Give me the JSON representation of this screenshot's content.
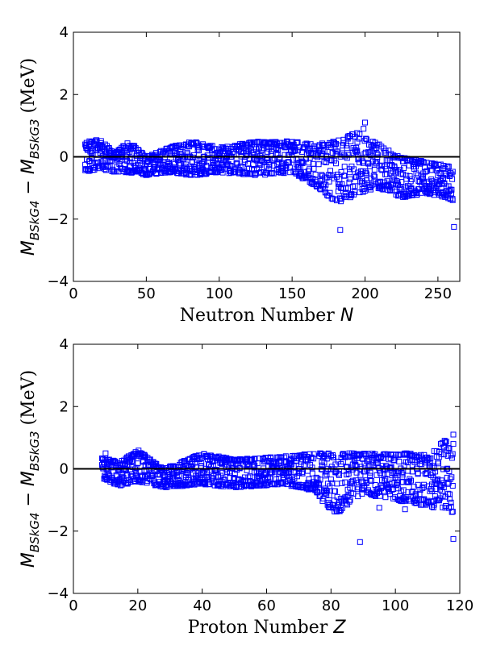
{
  "chart_data": [
    {
      "type": "scatter",
      "marker": "open-square",
      "color": "#0000ff",
      "xlabel": "Neutron Number",
      "xlabel_symbol": "N",
      "ylabel": {
        "prefix": "M",
        "sub1": "BSkG4",
        "minus": "−",
        "prefix2": "M",
        "sub2": "BSkG3",
        "unit": " (MeV)"
      },
      "xlim": [
        0,
        265
      ],
      "ylim": [
        -4,
        4
      ],
      "xticks": [
        0,
        50,
        100,
        150,
        200,
        250
      ],
      "yticks": [
        -4,
        -2,
        0,
        2,
        4
      ],
      "reference_line": 0,
      "envelope": [
        {
          "x": 8,
          "lo": -0.5,
          "hi": 0.4
        },
        {
          "x": 18,
          "lo": -0.4,
          "hi": 0.6
        },
        {
          "x": 28,
          "lo": -0.5,
          "hi": 0.1
        },
        {
          "x": 38,
          "lo": -0.5,
          "hi": 0.5
        },
        {
          "x": 50,
          "lo": -0.6,
          "hi": 0.0
        },
        {
          "x": 65,
          "lo": -0.5,
          "hi": 0.3
        },
        {
          "x": 82,
          "lo": -0.6,
          "hi": 0.5
        },
        {
          "x": 100,
          "lo": -0.5,
          "hi": 0.3
        },
        {
          "x": 126,
          "lo": -0.6,
          "hi": 0.5
        },
        {
          "x": 150,
          "lo": -0.5,
          "hi": 0.5
        },
        {
          "x": 165,
          "lo": -0.9,
          "hi": 0.4
        },
        {
          "x": 180,
          "lo": -1.5,
          "hi": 0.5
        },
        {
          "x": 195,
          "lo": -1.2,
          "hi": 0.8
        },
        {
          "x": 210,
          "lo": -1.0,
          "hi": 0.4
        },
        {
          "x": 225,
          "lo": -1.3,
          "hi": 0.0
        },
        {
          "x": 245,
          "lo": -1.2,
          "hi": -0.2
        },
        {
          "x": 260,
          "lo": -1.4,
          "hi": -0.3
        }
      ],
      "outliers": [
        {
          "x": 9,
          "y": 0.45
        },
        {
          "x": 11,
          "y": 0.5
        },
        {
          "x": 183,
          "y": -2.35
        },
        {
          "x": 200,
          "y": 1.1
        },
        {
          "x": 199,
          "y": 0.9
        },
        {
          "x": 261,
          "y": -2.25
        },
        {
          "x": 260,
          "y": -1.35
        },
        {
          "x": 190,
          "y": -1.3
        }
      ]
    },
    {
      "type": "scatter",
      "marker": "open-square",
      "color": "#0000ff",
      "xlabel": "Proton Number",
      "xlabel_symbol": "Z",
      "ylabel": {
        "prefix": "M",
        "sub1": "BSkG4",
        "minus": "−",
        "prefix2": "M",
        "sub2": "BSkG3",
        "unit": " (MeV)"
      },
      "xlim": [
        0,
        120
      ],
      "ylim": [
        -4,
        4
      ],
      "xticks": [
        0,
        20,
        40,
        60,
        80,
        100,
        120
      ],
      "yticks": [
        -4,
        -2,
        0,
        2,
        4
      ],
      "reference_line": 0,
      "envelope": [
        {
          "x": 9,
          "lo": -0.3,
          "hi": 0.4
        },
        {
          "x": 14,
          "lo": -0.55,
          "hi": 0.2
        },
        {
          "x": 20,
          "lo": -0.4,
          "hi": 0.6
        },
        {
          "x": 28,
          "lo": -0.6,
          "hi": 0.0
        },
        {
          "x": 40,
          "lo": -0.5,
          "hi": 0.5
        },
        {
          "x": 50,
          "lo": -0.6,
          "hi": 0.3
        },
        {
          "x": 65,
          "lo": -0.5,
          "hi": 0.4
        },
        {
          "x": 75,
          "lo": -0.7,
          "hi": 0.5
        },
        {
          "x": 81,
          "lo": -1.5,
          "hi": 0.5
        },
        {
          "x": 90,
          "lo": -0.8,
          "hi": 0.5
        },
        {
          "x": 100,
          "lo": -1.0,
          "hi": 0.5
        },
        {
          "x": 110,
          "lo": -1.2,
          "hi": 0.5
        },
        {
          "x": 118,
          "lo": -1.4,
          "hi": 1.1
        }
      ],
      "outliers": [
        {
          "x": 89,
          "y": -2.35
        },
        {
          "x": 118,
          "y": -2.25
        },
        {
          "x": 118,
          "y": 1.1
        },
        {
          "x": 118,
          "y": 0.8
        },
        {
          "x": 10,
          "y": 0.5
        },
        {
          "x": 95,
          "y": -1.25
        },
        {
          "x": 103,
          "y": -1.3
        }
      ]
    }
  ]
}
